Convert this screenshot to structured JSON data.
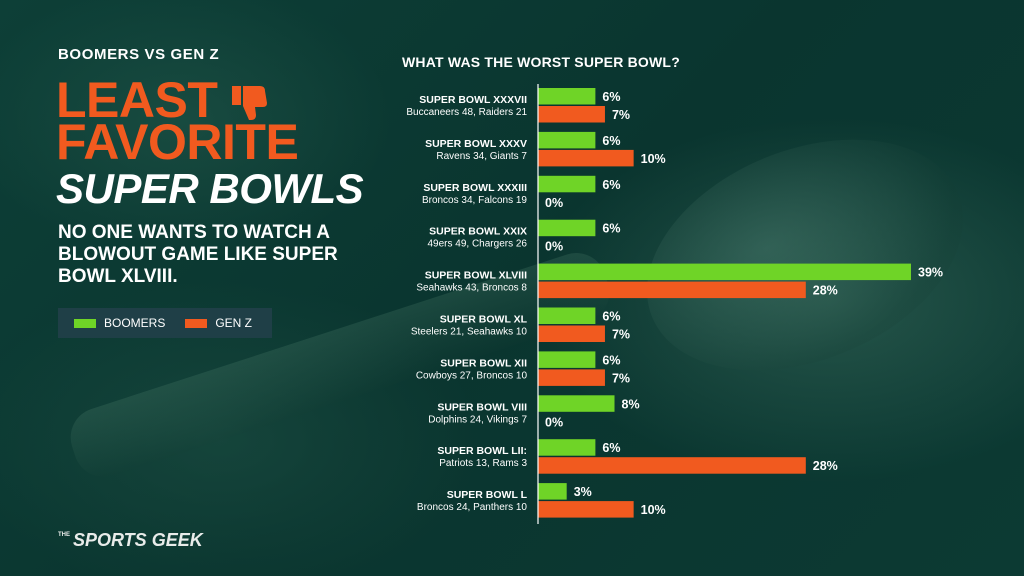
{
  "header": {
    "eyebrow": "BOOMERS VS GEN Z",
    "title_line1": "LEAST",
    "title_line2": "FAVORITE",
    "title_line3": "SUPER BOWLS",
    "subtitle": "NO ONE WANTS TO WATCH A BLOWOUT GAME LIKE SUPER BOWL XLVIII.",
    "icon": "thumbs-down-icon"
  },
  "legend": [
    {
      "label": "BOOMERS",
      "color": "#6fd427"
    },
    {
      "label": "GEN Z",
      "color": "#f15a1f"
    }
  ],
  "brand": {
    "small": "THE",
    "name": "SPORTS GEEK"
  },
  "colors": {
    "accent": "#f15a1f",
    "boomers": "#6fd427",
    "genz": "#f15a1f",
    "background": "#0b3a33"
  },
  "chart_data": {
    "type": "bar",
    "orientation": "horizontal",
    "title": "WHAT WAS THE WORST SUPER BOWL?",
    "categories": [
      {
        "name": "SUPER BOWL XXXVII",
        "score": "Buccaneers 48, Raiders 21"
      },
      {
        "name": "SUPER BOWL XXXV",
        "score": "Ravens 34, Giants 7"
      },
      {
        "name": "SUPER BOWL XXXIII",
        "score": "Broncos 34, Falcons 19"
      },
      {
        "name": "SUPER BOWL XXIX",
        "score": "49ers 49, Chargers 26"
      },
      {
        "name": "SUPER BOWL XLVIII",
        "score": "Seahawks 43, Broncos 8"
      },
      {
        "name": "SUPER BOWL XL",
        "score": "Steelers 21, Seahawks 10"
      },
      {
        "name": "SUPER BOWL XII",
        "score": "Cowboys 27, Broncos 10"
      },
      {
        "name": "SUPER BOWL VIII",
        "score": "Dolphins 24, Vikings 7"
      },
      {
        "name": "SUPER BOWL LII:",
        "score": "Patriots 13, Rams 3"
      },
      {
        "name": "SUPER BOWL L",
        "score": "Broncos 24, Panthers 10"
      }
    ],
    "series": [
      {
        "name": "BOOMERS",
        "color": "#6fd427",
        "values": [
          6,
          6,
          6,
          6,
          39,
          6,
          6,
          8,
          6,
          3
        ]
      },
      {
        "name": "GEN Z",
        "color": "#f15a1f",
        "values": [
          7,
          10,
          0,
          0,
          28,
          7,
          7,
          0,
          28,
          10
        ]
      }
    ],
    "value_suffix": "%",
    "xlim": [
      0,
      39
    ],
    "grid": false,
    "legend": "left"
  }
}
